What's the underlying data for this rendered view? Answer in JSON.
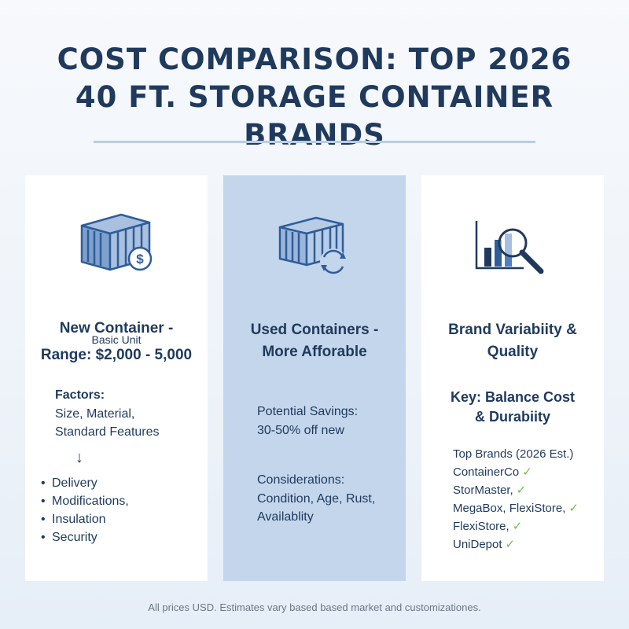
{
  "title": {
    "line1": "COST COMPARISON: TOP 2026",
    "line2": "40 FT. STORAGE CONTAINER BRANDS"
  },
  "cards": {
    "new": {
      "icon": "container-dollar-icon",
      "heading_line1": "New Container -",
      "sub_label": "Basic Unit",
      "heading_line2": "Range: $2,000 - 5,000",
      "factors_title": "Factors:",
      "factors_line1": "Size, Material,",
      "factors_line2": "Standard Features",
      "arrow": "↓",
      "bullets": [
        "Delivery",
        "Modifications,",
        "Insulation",
        "Security"
      ]
    },
    "used": {
      "icon": "container-recycle-icon",
      "heading_line1": "Used Containers -",
      "heading_line2": "More Afforable",
      "savings_label": "Potential Savings:",
      "savings_value": "30-50% off new",
      "considerations_label": "Considerations:",
      "considerations_line1": "Condition, Age, Rust,",
      "considerations_line2": "Availablity"
    },
    "brand": {
      "icon": "chart-magnifier-icon",
      "heading_line1": "Brand Variabiity &",
      "heading_line2": "Quality",
      "key_line1": "Key: Balance Cost",
      "key_line2": "& Durabiity",
      "brands_title": "Top Brands (2026 Est.)",
      "brands": [
        "ContainerCo",
        "StorMaster,",
        "MegaBox, FlexiStore,",
        "FlexiStore,",
        "UniDepot"
      ],
      "check_glyph": "✓",
      "check_color": "#6cc04a"
    }
  },
  "footnote": "All prices USD. Estimates vary based based market and customizationes.",
  "colors": {
    "navy": "#1f3a5c",
    "icon_blue": "#2f5d9a",
    "used_card_bg": "#c3d6ec"
  }
}
